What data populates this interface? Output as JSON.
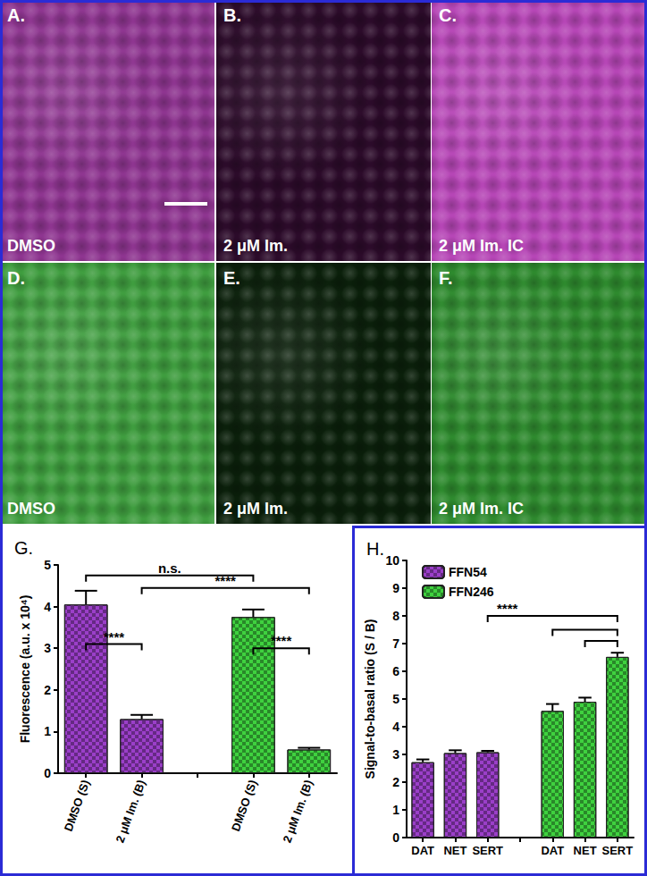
{
  "panels": [
    {
      "letter": "A.",
      "label": "DMSO",
      "color": "#8e3590"
    },
    {
      "letter": "B.",
      "label": "2 μM Im.",
      "color": "#2c0b2a"
    },
    {
      "letter": "C.",
      "label": "2 μM Im. IC",
      "color": "#b646b6"
    },
    {
      "letter": "D.",
      "label": "DMSO",
      "color": "#3f9d3f"
    },
    {
      "letter": "E.",
      "label": "2 μM Im.",
      "color": "#0b200b"
    },
    {
      "letter": "F.",
      "label": "2 μM Im. IC",
      "color": "#2e8a2e"
    }
  ],
  "chart_data": [
    {
      "type": "bar",
      "title": "G.",
      "categories": [
        "DMSO (S)",
        "2 μM Im. (B)",
        null,
        "DMSO (S)",
        "2 μM Im. (B)"
      ],
      "values": [
        4.05,
        1.3,
        null,
        3.75,
        0.57
      ],
      "errors": [
        0.33,
        0.1,
        null,
        0.18,
        0.04
      ],
      "colors": [
        "#9b3fc9",
        "#9b3fc9",
        null,
        "#3fd13f",
        "#3fd13f"
      ],
      "ylabel": "Fluorescence (a.u. x 10⁴)",
      "ylim": [
        0,
        5
      ],
      "yticks": [
        0,
        1,
        2,
        3,
        4,
        5
      ],
      "brackets": [
        {
          "from": 0,
          "to": 3,
          "y": 4.75,
          "text": "n.s."
        },
        {
          "from": 1,
          "to": 4,
          "y": 4.45,
          "text": "****"
        },
        {
          "from": 0,
          "to": 1,
          "y": 3.1,
          "text": "****"
        },
        {
          "from": 3,
          "to": 4,
          "y": 3.0,
          "text": "****"
        }
      ]
    },
    {
      "type": "bar",
      "title": "H.",
      "categories": [
        "DAT",
        "NET",
        "SERT",
        null,
        "DAT",
        "NET",
        "SERT"
      ],
      "series": [
        {
          "name": "FFN54",
          "color": "#9b3fc9",
          "values": [
            2.72,
            3.05,
            3.08,
            null,
            null,
            null,
            null
          ],
          "errors": [
            0.1,
            0.1,
            0.05,
            null,
            null,
            null,
            null
          ]
        },
        {
          "name": "FFN246",
          "color": "#3fd13f",
          "values": [
            null,
            null,
            null,
            null,
            4.57,
            4.9,
            6.52
          ],
          "errors": [
            null,
            null,
            null,
            null,
            0.25,
            0.15,
            0.15
          ]
        }
      ],
      "ylabel": "Signal-to-basal ratio (S / B)",
      "ylim": [
        0,
        10
      ],
      "yticks": [
        0,
        1,
        2,
        3,
        4,
        5,
        6,
        7,
        8,
        9,
        10
      ],
      "legend": "top-left",
      "brackets": [
        {
          "from": 2,
          "to": 6,
          "y": 8.0,
          "text": "****"
        },
        {
          "from": 4,
          "to": 6,
          "y": 7.5
        },
        {
          "from": 5,
          "to": 6,
          "y": 7.1
        }
      ]
    }
  ]
}
